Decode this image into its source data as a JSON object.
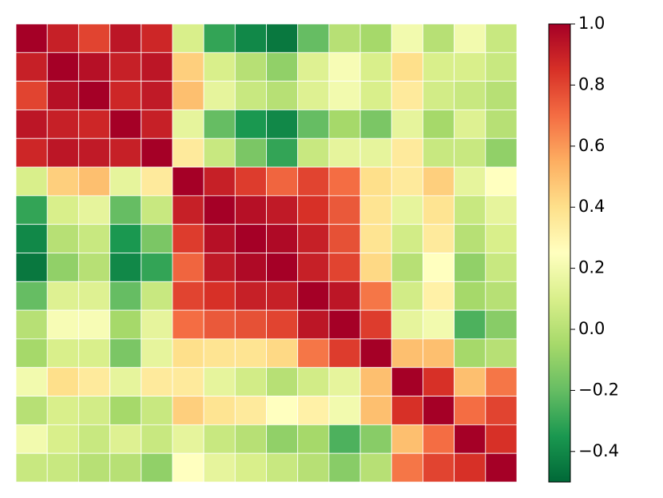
{
  "chart_data": {
    "type": "heatmap",
    "colorscale": [
      "#006837",
      "#1a9850",
      "#66bd63",
      "#a6d96a",
      "#d9ef8b",
      "#ffffbf",
      "#fee08b",
      "#fdae61",
      "#f46d43",
      "#d73027",
      "#a50026"
    ],
    "zlim": [
      -0.5,
      1.0
    ],
    "zticks": [
      {
        "value": -0.4,
        "label": "−0.4"
      },
      {
        "value": -0.2,
        "label": "−0.2"
      },
      {
        "value": 0.0,
        "label": "0.0"
      },
      {
        "value": 0.2,
        "label": "0.2"
      },
      {
        "value": 0.4,
        "label": "0.4"
      },
      {
        "value": 0.6,
        "label": "0.6"
      },
      {
        "value": 0.8,
        "label": "0.8"
      },
      {
        "value": 1.0,
        "label": "1.0"
      }
    ],
    "values": [
      [
        1.0,
        0.9,
        0.8,
        0.93,
        0.88,
        0.1,
        -0.3,
        -0.4,
        -0.45,
        -0.2,
        0.0,
        -0.05,
        0.2,
        0.0,
        0.2,
        0.05
      ],
      [
        0.9,
        1.0,
        0.95,
        0.9,
        0.93,
        0.45,
        0.1,
        0.0,
        -0.1,
        0.12,
        0.22,
        0.1,
        0.4,
        0.1,
        0.1,
        0.05
      ],
      [
        0.8,
        0.95,
        1.0,
        0.88,
        0.92,
        0.5,
        0.15,
        0.05,
        0.0,
        0.12,
        0.2,
        0.1,
        0.35,
        0.08,
        0.05,
        0.0
      ],
      [
        0.93,
        0.9,
        0.88,
        1.0,
        0.9,
        0.15,
        -0.2,
        -0.35,
        -0.4,
        -0.2,
        -0.05,
        -0.15,
        0.15,
        -0.05,
        0.12,
        0.0
      ],
      [
        0.88,
        0.93,
        0.92,
        0.9,
        1.0,
        0.35,
        0.05,
        -0.15,
        -0.3,
        0.05,
        0.15,
        0.15,
        0.35,
        0.05,
        0.05,
        -0.1
      ],
      [
        0.1,
        0.45,
        0.5,
        0.15,
        0.35,
        1.0,
        0.9,
        0.82,
        0.72,
        0.8,
        0.7,
        0.4,
        0.35,
        0.45,
        0.15,
        0.25
      ],
      [
        -0.3,
        0.1,
        0.15,
        -0.2,
        0.05,
        0.9,
        1.0,
        0.95,
        0.92,
        0.85,
        0.75,
        0.38,
        0.15,
        0.38,
        0.05,
        0.15
      ],
      [
        -0.4,
        0.0,
        0.05,
        -0.35,
        -0.15,
        0.82,
        0.95,
        1.0,
        0.97,
        0.9,
        0.77,
        0.38,
        0.08,
        0.35,
        0.0,
        0.1
      ],
      [
        -0.45,
        -0.1,
        0.0,
        -0.4,
        -0.3,
        0.72,
        0.92,
        0.97,
        1.0,
        0.9,
        0.8,
        0.42,
        0.0,
        0.25,
        -0.1,
        0.05
      ],
      [
        -0.2,
        0.12,
        0.12,
        -0.2,
        0.05,
        0.8,
        0.85,
        0.9,
        0.9,
        1.0,
        0.93,
        0.68,
        0.08,
        0.32,
        -0.05,
        0.0
      ],
      [
        0.0,
        0.22,
        0.22,
        -0.05,
        0.15,
        0.7,
        0.75,
        0.77,
        0.8,
        0.93,
        1.0,
        0.82,
        0.15,
        0.2,
        -0.25,
        -0.12
      ],
      [
        -0.05,
        0.1,
        0.1,
        -0.15,
        0.15,
        0.4,
        0.38,
        0.38,
        0.42,
        0.68,
        0.82,
        1.0,
        0.5,
        0.5,
        -0.05,
        0.0
      ],
      [
        0.2,
        0.4,
        0.35,
        0.15,
        0.35,
        0.35,
        0.15,
        0.08,
        0.0,
        0.08,
        0.15,
        0.5,
        1.0,
        0.85,
        0.5,
        0.68
      ],
      [
        0.0,
        0.1,
        0.08,
        -0.05,
        0.05,
        0.45,
        0.38,
        0.35,
        0.25,
        0.32,
        0.2,
        0.5,
        0.85,
        1.0,
        0.7,
        0.8
      ],
      [
        0.2,
        0.1,
        0.05,
        0.12,
        0.05,
        0.15,
        0.05,
        0.0,
        -0.1,
        -0.05,
        -0.25,
        -0.12,
        0.5,
        0.7,
        1.0,
        0.85
      ],
      [
        0.05,
        0.05,
        0.0,
        0.0,
        -0.1,
        0.25,
        0.15,
        0.1,
        0.05,
        0.0,
        -0.12,
        0.0,
        0.68,
        0.8,
        0.85,
        1.0
      ]
    ]
  }
}
